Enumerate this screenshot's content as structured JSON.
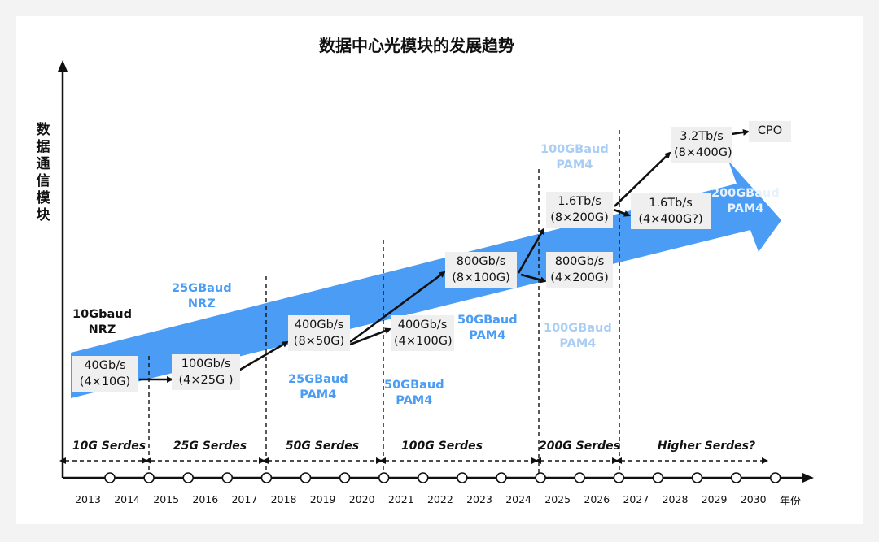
{
  "title": "数据中心光模块的发展趋势",
  "y_axis_label": [
    "数",
    "据",
    "通",
    "信",
    "模",
    "块"
  ],
  "x_axis_unit": "年份",
  "years": [
    "2013",
    "2014",
    "2015",
    "2016",
    "2017",
    "2018",
    "2019",
    "2020",
    "2021",
    "2022",
    "2023",
    "2024",
    "2025",
    "2026",
    "2027",
    "2028",
    "2029",
    "2030"
  ],
  "serdes": [
    "10G Serdes",
    "25G Serdes",
    "50G Serdes",
    "100G Serdes",
    "200G Serdes",
    "Higher Serdes?"
  ],
  "modules": [
    {
      "line1": "40Gb/s",
      "line2": "(4×10G)"
    },
    {
      "line1": "100Gb/s",
      "line2": "(4×25G )"
    },
    {
      "line1": "400Gb/s",
      "line2": "(8×50G)"
    },
    {
      "line1": "400Gb/s",
      "line2": "(4×100G)"
    },
    {
      "line1": "800Gb/s",
      "line2": "(8×100G)"
    },
    {
      "line1": "800Gb/s",
      "line2": "(4×200G)"
    },
    {
      "line1": "1.6Tb/s",
      "line2": "(8×200G)"
    },
    {
      "line1": "1.6Tb/s",
      "line2": "(4×400G?)"
    },
    {
      "line1": "3.2Tb/s",
      "line2": "(8×400G)"
    },
    {
      "line1": "CPO",
      "line2": ""
    }
  ],
  "baud_labels": [
    {
      "line1": "10Gbaud",
      "line2": "NRZ"
    },
    {
      "line1": "25GBaud",
      "line2": "NRZ"
    },
    {
      "line1": "25GBaud",
      "line2": "PAM4"
    },
    {
      "line1": "50GBaud",
      "line2": "PAM4"
    },
    {
      "line1": "50GBaud",
      "line2": "PAM4"
    },
    {
      "line1": "100GBaud",
      "line2": "PAM4"
    },
    {
      "line1": "100GBaud",
      "line2": "PAM4"
    },
    {
      "line1": "200GBaud",
      "line2": "PAM4"
    }
  ],
  "colors": {
    "big_arrow": "#4a9cf4",
    "baud_blue": "#4a9cf4",
    "baud_light": "#a9cdf3",
    "box_bg": "#efefef",
    "text_dark": "#111111"
  }
}
